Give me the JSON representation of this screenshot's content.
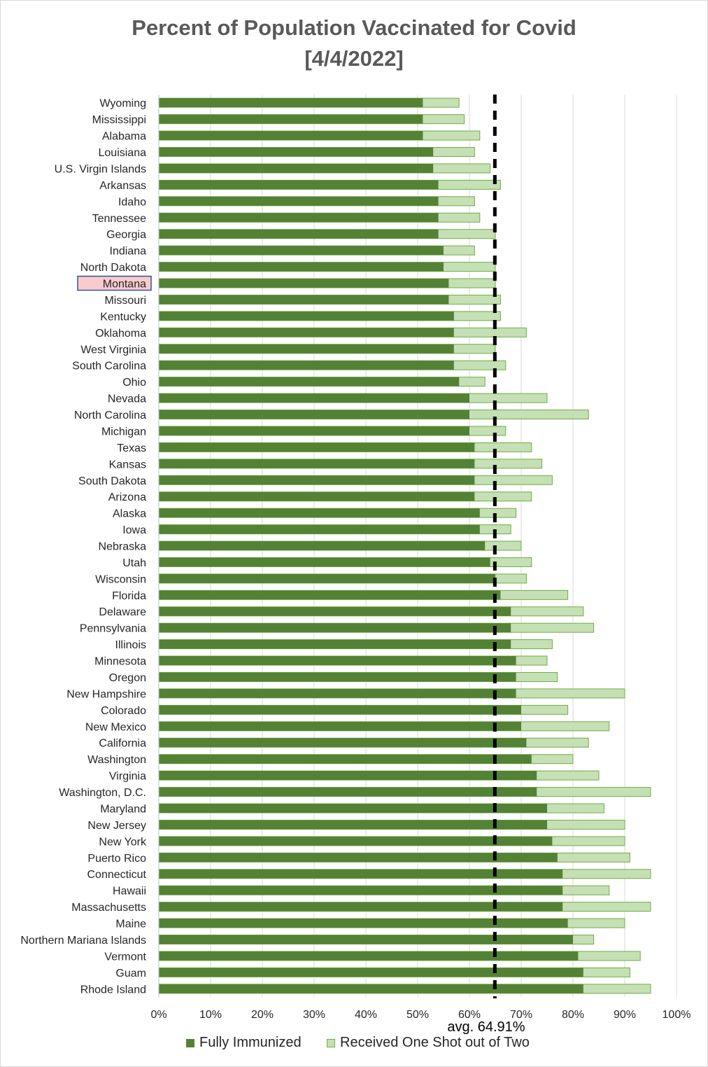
{
  "chart_data": {
    "type": "bar",
    "orientation": "horizontal",
    "stacked": false,
    "title": "Percent of Population Vaccinated for Covid",
    "subtitle": "[4/4/2022]",
    "categories": [
      "Wyoming",
      "Mississippi",
      "Alabama",
      "Louisiana",
      "U.S. Virgin Islands",
      "Arkansas",
      "Idaho",
      "Tennessee",
      "Georgia",
      "Indiana",
      "North Dakota",
      "Montana",
      "Missouri",
      "Kentucky",
      "Oklahoma",
      "West Virginia",
      "South Carolina",
      "Ohio",
      "Nevada",
      "North Carolina",
      "Michigan",
      "Texas",
      "Kansas",
      "South Dakota",
      "Arizona",
      "Alaska",
      "Iowa",
      "Nebraska",
      "Utah",
      "Wisconsin",
      "Florida",
      "Delaware",
      "Pennsylvania",
      "Illinois",
      "Minnesota",
      "Oregon",
      "New Hampshire",
      "Colorado",
      "New Mexico",
      "California",
      "Washington",
      "Virginia",
      "Washington, D.C.",
      "Maryland",
      "New Jersey",
      "New York",
      "Puerto Rico",
      "Connecticut",
      "Hawaii",
      "Massachusetts",
      "Maine",
      "Northern Mariana Islands",
      "Vermont",
      "Guam",
      "Rhode Island"
    ],
    "highlighted_category": "Montana",
    "series": [
      {
        "name": "Fully Immunized",
        "color": "#548235",
        "values": [
          51,
          51,
          51,
          53,
          53,
          54,
          54,
          54,
          54,
          55,
          55,
          56,
          56,
          57,
          57,
          57,
          57,
          58,
          60,
          60,
          60,
          61,
          61,
          61,
          61,
          62,
          62,
          63,
          64,
          65,
          66,
          68,
          68,
          68,
          69,
          69,
          69,
          70,
          70,
          71,
          72,
          73,
          73,
          75,
          75,
          76,
          77,
          78,
          78,
          78,
          79,
          80,
          81,
          82,
          82
        ]
      },
      {
        "name": "Received One Shot out of Two",
        "color": "#c5e0b4",
        "border_color": "#70ad47",
        "values": [
          58,
          59,
          62,
          61,
          64,
          66,
          61,
          62,
          65,
          61,
          65,
          65,
          66,
          66,
          71,
          65,
          67,
          63,
          75,
          83,
          67,
          72,
          74,
          76,
          72,
          69,
          68,
          70,
          72,
          71,
          79,
          82,
          84,
          76,
          75,
          77,
          90,
          79,
          87,
          83,
          80,
          85,
          95,
          86,
          90,
          90,
          91,
          95,
          87,
          95,
          90,
          84,
          93,
          91,
          95
        ]
      }
    ],
    "average": 64.91,
    "average_label": "avg. 64.91%",
    "x_ticks": [
      "0%",
      "10%",
      "20%",
      "30%",
      "40%",
      "50%",
      "60%",
      "70%",
      "80%",
      "90%",
      "100%"
    ],
    "xlim": [
      0,
      100
    ],
    "grid": true,
    "legend_position": "bottom"
  },
  "colors": {
    "highlight_fill": "#f8cbcc",
    "highlight_border": "#2f5597",
    "average_line": "#000000",
    "gridline": "#d9d9d9"
  }
}
